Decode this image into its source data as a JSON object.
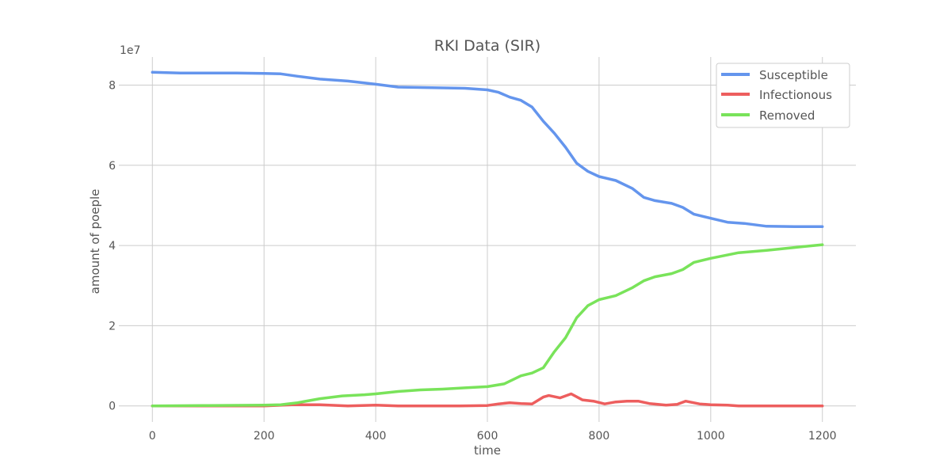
{
  "chart_data": {
    "type": "line",
    "title": "RKI Data (SIR)",
    "xlabel": "time",
    "ylabel": "amount of poeple",
    "y_offset_label": "1e7",
    "xlim": [
      -60,
      1260
    ],
    "ylim": [
      -0.4,
      8.7
    ],
    "x_ticks": [
      0,
      200,
      400,
      600,
      800,
      1000,
      1200
    ],
    "y_ticks": [
      0,
      2,
      4,
      6,
      8
    ],
    "grid": true,
    "legend_position": "top-right",
    "series": [
      {
        "name": "Susceptible",
        "color": "#6495ed",
        "x": [
          0,
          50,
          100,
          150,
          200,
          230,
          260,
          300,
          350,
          400,
          440,
          480,
          520,
          560,
          600,
          620,
          640,
          660,
          680,
          700,
          720,
          740,
          760,
          780,
          800,
          830,
          860,
          880,
          900,
          930,
          950,
          970,
          1000,
          1030,
          1060,
          1100,
          1150,
          1200
        ],
        "y": [
          8.32,
          8.3,
          8.3,
          8.3,
          8.29,
          8.28,
          8.22,
          8.15,
          8.1,
          8.02,
          7.95,
          7.94,
          7.93,
          7.92,
          7.88,
          7.82,
          7.7,
          7.62,
          7.45,
          7.1,
          6.8,
          6.45,
          6.05,
          5.85,
          5.72,
          5.62,
          5.42,
          5.2,
          5.12,
          5.05,
          4.95,
          4.78,
          4.68,
          4.58,
          4.55,
          4.48,
          4.47,
          4.47
        ]
      },
      {
        "name": "Infectionous",
        "color": "#ed5e5e",
        "x": [
          0,
          100,
          200,
          250,
          300,
          350,
          400,
          440,
          500,
          550,
          600,
          620,
          640,
          660,
          680,
          700,
          710,
          730,
          750,
          770,
          790,
          810,
          830,
          850,
          870,
          890,
          920,
          940,
          955,
          980,
          1000,
          1030,
          1050,
          1100,
          1200
        ],
        "y": [
          0.0,
          0.0,
          0.0,
          0.03,
          0.03,
          0.0,
          0.02,
          0.0,
          0.0,
          0.0,
          0.01,
          0.05,
          0.08,
          0.06,
          0.05,
          0.22,
          0.26,
          0.2,
          0.3,
          0.15,
          0.12,
          0.05,
          0.1,
          0.12,
          0.12,
          0.06,
          0.02,
          0.04,
          0.12,
          0.05,
          0.03,
          0.02,
          0.0,
          0.0,
          0.0
        ]
      },
      {
        "name": "Removed",
        "color": "#79e35a",
        "x": [
          0,
          100,
          200,
          230,
          260,
          300,
          340,
          380,
          400,
          440,
          480,
          520,
          560,
          600,
          630,
          660,
          680,
          700,
          720,
          740,
          760,
          780,
          800,
          830,
          860,
          880,
          900,
          930,
          950,
          970,
          1000,
          1050,
          1100,
          1150,
          1200
        ],
        "y": [
          0.0,
          0.01,
          0.02,
          0.03,
          0.08,
          0.18,
          0.25,
          0.28,
          0.3,
          0.36,
          0.4,
          0.42,
          0.45,
          0.48,
          0.55,
          0.75,
          0.82,
          0.95,
          1.35,
          1.7,
          2.2,
          2.5,
          2.65,
          2.75,
          2.95,
          3.12,
          3.22,
          3.3,
          3.4,
          3.58,
          3.68,
          3.82,
          3.88,
          3.95,
          4.02
        ]
      }
    ]
  }
}
